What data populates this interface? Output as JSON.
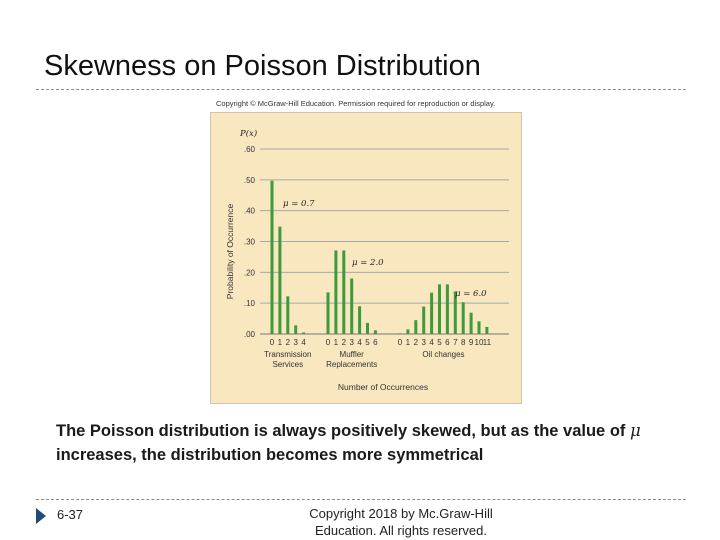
{
  "slide": {
    "title": "Skewness on Poisson Distribution",
    "figure_copyright": "Copyright © McGraw-Hill Education. Permission required for reproduction or display.",
    "caption_part1": "The Poisson distribution is always positively skewed, but as the value of ",
    "caption_mu": "μ",
    "caption_part2": " increases, the distribution becomes more symmetrical",
    "page_number": "6-37",
    "footer_line1": "Copyright 2018 by Mc.Graw-Hill",
    "footer_line2": "Education. All rights reserved."
  },
  "chart_data": {
    "type": "bar",
    "ylabel": "Probability of Occurrence",
    "yaxis_title": "P(x)",
    "xlabel": "Number of Occurrences",
    "ylim": [
      0,
      0.6
    ],
    "yticks": [
      ".00",
      ".10",
      ".20",
      ".30",
      ".40",
      ".50",
      ".60"
    ],
    "grid": true,
    "bar_color": "#3d9a3d",
    "groups": [
      {
        "label_line1": "Transmission",
        "label_line2": "Services",
        "mu_label": "μ = 0.7",
        "x": [
          "0",
          "1",
          "2",
          "3",
          "4"
        ],
        "values": [
          0.497,
          0.348,
          0.122,
          0.028,
          0.005
        ]
      },
      {
        "label_line1": "Muffler",
        "label_line2": "Replacements",
        "mu_label": "μ = 2.0",
        "x": [
          "0",
          "1",
          "2",
          "3",
          "4",
          "5",
          "6"
        ],
        "values": [
          0.135,
          0.271,
          0.271,
          0.18,
          0.09,
          0.036,
          0.012
        ]
      },
      {
        "label_line1": "Oil changes",
        "label_line2": "",
        "mu_label": "μ = 6.0",
        "x": [
          "0",
          "1",
          "2",
          "3",
          "4",
          "5",
          "6",
          "7",
          "8",
          "9",
          "10",
          "11"
        ],
        "values": [
          0.002,
          0.015,
          0.045,
          0.089,
          0.134,
          0.161,
          0.161,
          0.138,
          0.103,
          0.069,
          0.041,
          0.023
        ]
      }
    ]
  }
}
